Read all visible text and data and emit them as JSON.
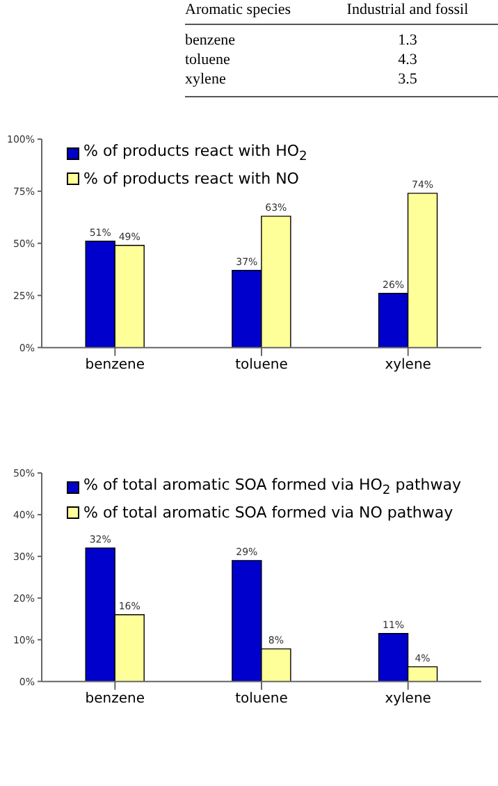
{
  "chart_data": [
    {
      "type": "other",
      "annotations": [
        "Aromatic species",
        "Industrial and fossil",
        "benzene",
        "1.3",
        "toluene",
        "4.3",
        "xylene",
        "3.5"
      ]
    },
    {
      "type": "bar",
      "categories": [
        "benzene",
        "toluene",
        "xylene"
      ],
      "ylim": [
        0,
        100
      ],
      "yticks": [
        {
          "value": 0,
          "label": "0%"
        },
        {
          "value": 25,
          "label": "25%"
        },
        {
          "value": 50,
          "label": "50%"
        },
        {
          "value": 75,
          "label": "75%"
        },
        {
          "value": 100,
          "label": "100%"
        }
      ],
      "grid": false,
      "legend": "top left",
      "series": [
        {
          "name": "% of products react with HO$_{2}$",
          "color": "#0000cc",
          "values": [
            51,
            37,
            26
          ],
          "value_labels": [
            "51%",
            "37%",
            "26%"
          ]
        },
        {
          "name": "% of products react with NO",
          "color": "#ffff99",
          "values": [
            49,
            63,
            74
          ],
          "value_labels": [
            "49%",
            "63%",
            "74%"
          ]
        }
      ]
    },
    {
      "type": "bar",
      "categories": [
        "benzene",
        "toluene",
        "xylene"
      ],
      "ylim": [
        0,
        50
      ],
      "yticks": [
        {
          "value": 0,
          "label": "0%"
        },
        {
          "value": 10,
          "label": "10%"
        },
        {
          "value": 20,
          "label": "20%"
        },
        {
          "value": 30,
          "label": "30%"
        },
        {
          "value": 40,
          "label": "40%"
        },
        {
          "value": 50,
          "label": "50%"
        }
      ],
      "grid": false,
      "legend": "top left",
      "series": [
        {
          "name": "% of total aromatic SOA formed via HO$_{2}$ pathway",
          "color": "#0000cc",
          "values": [
            32,
            29,
            11.5
          ],
          "value_labels": [
            "32%",
            "29%",
            "11%"
          ]
        },
        {
          "name": "% of total aromatic SOA formed via NO pathway",
          "color": "#ffff99",
          "values": [
            16,
            7.8,
            3.5
          ],
          "value_labels": [
            "16%",
            "8%",
            "4%"
          ]
        }
      ]
    }
  ]
}
